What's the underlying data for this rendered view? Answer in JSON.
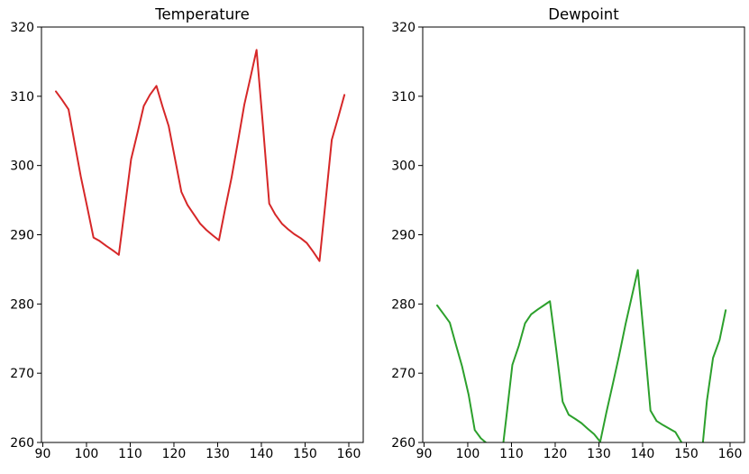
{
  "figure": {
    "background": "#ffffff",
    "text_color": "#000000",
    "spine_color": "#000000"
  },
  "chart_data": [
    {
      "id": "temperature",
      "type": "line",
      "title": "Temperature",
      "line_color": "#d62728",
      "grid": false,
      "legend": null,
      "xlim": [
        89.7,
        163.3
      ],
      "ylim": [
        260,
        320
      ],
      "xticks": [
        90,
        100,
        110,
        120,
        130,
        140,
        150,
        160
      ],
      "yticks": [
        260,
        270,
        280,
        290,
        300,
        310,
        320
      ],
      "x": [
        93.0,
        94.4,
        95.9,
        97.3,
        98.7,
        100.2,
        101.6,
        103.0,
        104.5,
        105.9,
        107.4,
        108.8,
        110.2,
        111.7,
        113.1,
        114.5,
        116.0,
        117.4,
        118.8,
        120.3,
        121.7,
        123.1,
        124.6,
        126.0,
        127.4,
        128.9,
        130.3,
        131.7,
        133.2,
        134.6,
        136.1,
        137.5,
        138.9,
        140.4,
        141.8,
        143.2,
        144.7,
        146.1,
        147.5,
        149.0,
        150.4,
        151.8,
        153.3,
        154.7,
        156.1,
        157.6,
        159.0
      ],
      "values": [
        310.7,
        309.5,
        308.1,
        303.2,
        298.4,
        293.9,
        289.6,
        289.1,
        288.4,
        287.8,
        287.1,
        294.0,
        300.9,
        304.8,
        308.6,
        310.2,
        311.5,
        308.5,
        305.7,
        300.8,
        296.2,
        294.3,
        292.9,
        291.6,
        290.7,
        289.9,
        289.2,
        293.7,
        298.3,
        303.3,
        308.8,
        312.7,
        316.7,
        305.5,
        294.5,
        292.9,
        291.6,
        290.8,
        290.1,
        289.5,
        288.8,
        287.6,
        286.2,
        294.9,
        303.7,
        307.0,
        310.2
      ]
    },
    {
      "id": "dewpoint",
      "type": "line",
      "title": "Dewpoint",
      "line_color": "#2ca02c",
      "grid": false,
      "legend": null,
      "xlim": [
        89.7,
        163.3
      ],
      "ylim": [
        260,
        320
      ],
      "xticks": [
        90,
        100,
        110,
        120,
        130,
        140,
        150,
        160
      ],
      "yticks": [
        260,
        270,
        280,
        290,
        300,
        310,
        320
      ],
      "x": [
        93.0,
        94.4,
        95.9,
        97.3,
        98.7,
        100.2,
        101.6,
        103.0,
        104.5,
        105.9,
        107.4,
        108.8,
        110.2,
        111.7,
        113.1,
        114.5,
        116.0,
        117.4,
        118.8,
        120.3,
        121.7,
        123.1,
        124.6,
        126.0,
        127.4,
        128.9,
        130.3,
        131.7,
        133.2,
        134.6,
        136.1,
        137.5,
        138.9,
        140.4,
        141.8,
        143.2,
        144.7,
        146.1,
        147.5,
        149.0,
        150.4,
        151.8,
        153.3,
        154.7,
        156.1,
        157.6,
        159.0
      ],
      "values": [
        279.8,
        278.6,
        277.3,
        274.1,
        271.0,
        266.9,
        261.8,
        260.6,
        259.8,
        256.5,
        256.0,
        263.5,
        271.2,
        274.0,
        277.2,
        278.5,
        279.2,
        279.8,
        280.4,
        273.1,
        265.9,
        264.0,
        263.4,
        262.8,
        262.0,
        261.2,
        260.1,
        264.3,
        268.5,
        272.5,
        277.1,
        281.0,
        284.9,
        274.5,
        264.6,
        263.1,
        262.5,
        262.0,
        261.5,
        259.9,
        256.5,
        255.0,
        256.8,
        266.0,
        272.2,
        274.8,
        279.1
      ]
    }
  ]
}
